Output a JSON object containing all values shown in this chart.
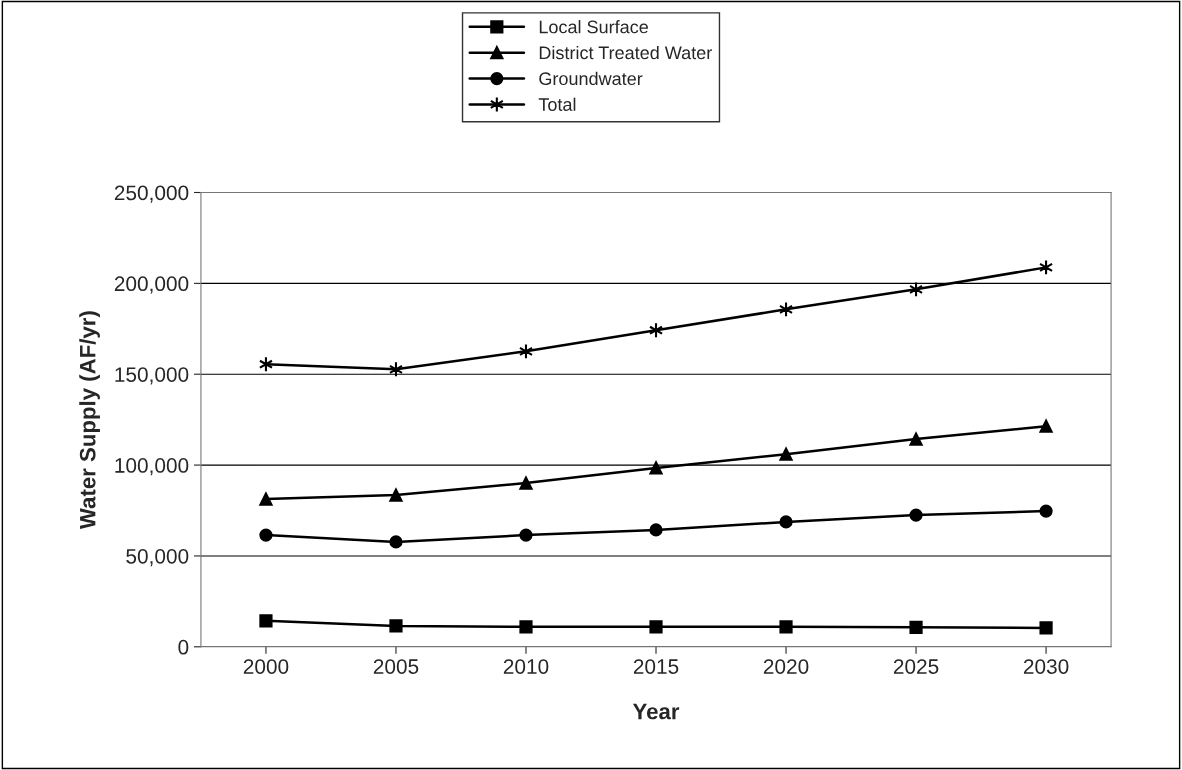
{
  "chart_data": {
    "type": "line",
    "xlabel": "Year",
    "ylabel": "Water Supply (AF/yr)",
    "categories": [
      "2000",
      "2005",
      "2010",
      "2015",
      "2020",
      "2025",
      "2030"
    ],
    "series": [
      {
        "name": "Local Surface",
        "color": "#000000",
        "marker": "square",
        "values": [
          14300,
          11500,
          11000,
          11000,
          11000,
          10700,
          10400
        ]
      },
      {
        "name": "District Treated Water",
        "color": "#000000",
        "marker": "triangle",
        "values": [
          81300,
          83500,
          90100,
          98400,
          106000,
          114300,
          121400
        ]
      },
      {
        "name": "Groundwater",
        "color": "#000000",
        "marker": "circle",
        "values": [
          61500,
          57700,
          61500,
          64300,
          68700,
          72500,
          74700
        ]
      },
      {
        "name": "Total",
        "color": "#000000",
        "marker": "cross",
        "values": [
          155500,
          152700,
          162600,
          174200,
          185700,
          196700,
          208800
        ]
      }
    ],
    "ylim": [
      0,
      250000
    ],
    "yticks": [
      {
        "value": 0,
        "label": "0"
      },
      {
        "value": 50000,
        "label": "50,000"
      },
      {
        "value": 100000,
        "label": "100,000"
      },
      {
        "value": 150000,
        "label": "150,000"
      },
      {
        "value": 200000,
        "label": "200,000"
      },
      {
        "value": 250000,
        "label": "250,000"
      }
    ],
    "grid": "y",
    "legend": "top",
    "line_style": "solid"
  }
}
